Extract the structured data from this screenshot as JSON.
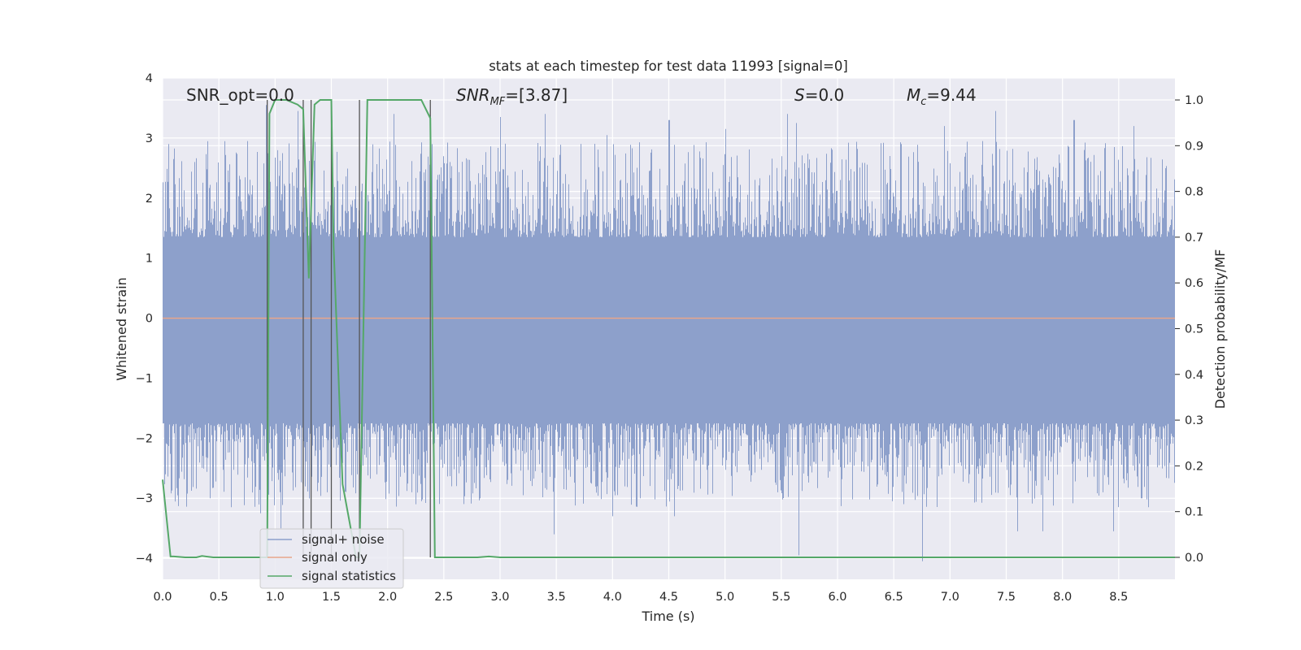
{
  "chart_data": {
    "type": "line",
    "title": "stats at each timestep for test data 11993 [signal=0]",
    "xlabel": "Time (s)",
    "ylabel": "Whitened strain",
    "y2label": "Detection probability/MF",
    "xlim": [
      0.0,
      9.0
    ],
    "ylim": [
      -4.35,
      4.0
    ],
    "y2lim": [
      -0.048,
      1.048
    ],
    "xticks": [
      "0.0",
      "0.5",
      "1.0",
      "1.5",
      "2.0",
      "2.5",
      "3.0",
      "3.5",
      "4.0",
      "4.5",
      "5.0",
      "5.5",
      "6.0",
      "6.5",
      "7.0",
      "7.5",
      "8.0",
      "8.5"
    ],
    "yticks": [
      "4",
      "3",
      "2",
      "1",
      "0",
      "−1",
      "−2",
      "−3",
      "−4"
    ],
    "y2ticks": [
      "1.0",
      "0.9",
      "0.8",
      "0.7",
      "0.6",
      "0.5",
      "0.4",
      "0.3",
      "0.2",
      "0.1",
      "0.0"
    ],
    "grid": true,
    "legend_position": "lower-left",
    "annotations": [
      {
        "base": "SNR_opt=0.0"
      },
      {
        "base": "SNR",
        "sub": "MF",
        "rest": "=[3.87]"
      },
      {
        "base": "S",
        "rest": "=0.0"
      },
      {
        "base": "M",
        "sub": "c",
        "rest": "=9.44"
      }
    ],
    "series": [
      {
        "name": "signal+ noise",
        "color": "#8da0cb",
        "axis": "left",
        "kind": "noise",
        "duration": 9.0,
        "sample_rate": 2048,
        "envelope_lower": -1.75,
        "envelope_upper": 1.35,
        "positive_peaks": [
          [
            0.05,
            2.9
          ],
          [
            0.28,
            2.6
          ],
          [
            0.75,
            2.95
          ],
          [
            0.92,
            3.55
          ],
          [
            1.2,
            3.45
          ],
          [
            1.5,
            3.3
          ],
          [
            2.05,
            3.4
          ],
          [
            2.55,
            2.6
          ],
          [
            3.0,
            3.35
          ],
          [
            3.4,
            3.4
          ],
          [
            3.95,
            3.05
          ],
          [
            4.5,
            3.3
          ],
          [
            5.0,
            3.15
          ],
          [
            5.55,
            3.4
          ],
          [
            5.63,
            3.25
          ],
          [
            6.95,
            3.2
          ],
          [
            7.4,
            3.45
          ],
          [
            8.1,
            3.3
          ],
          [
            8.63,
            3.2
          ]
        ],
        "negative_peaks": [
          [
            0.02,
            -2.6
          ],
          [
            0.42,
            -3.0
          ],
          [
            0.87,
            -3.25
          ],
          [
            1.05,
            -3.5
          ],
          [
            2.3,
            -3.05
          ],
          [
            2.82,
            -3.0
          ],
          [
            3.48,
            -3.6
          ],
          [
            4.0,
            -3.3
          ],
          [
            4.55,
            -3.3
          ],
          [
            5.65,
            -3.95
          ],
          [
            6.75,
            -4.05
          ],
          [
            7.6,
            -3.55
          ],
          [
            7.82,
            -3.55
          ],
          [
            8.45,
            -3.55
          ],
          [
            8.7,
            -3.0
          ]
        ]
      },
      {
        "name": "signal only",
        "color": "#e8a58a",
        "axis": "left",
        "x": [
          0.0,
          9.0
        ],
        "y": [
          0.0,
          0.0
        ]
      },
      {
        "name": "signal statistics",
        "color": "#55a868",
        "axis": "right",
        "x": [
          0.0,
          0.07,
          0.1,
          0.2,
          0.3,
          0.35,
          0.45,
          0.6,
          0.8,
          0.9,
          0.93,
          0.95,
          1.0,
          1.1,
          1.2,
          1.25,
          1.3,
          1.35,
          1.4,
          1.5,
          1.52,
          1.6,
          1.72,
          1.75,
          1.82,
          1.9,
          2.0,
          2.2,
          2.3,
          2.38,
          2.42,
          2.45,
          2.5,
          2.8,
          2.9,
          3.0,
          4.0,
          5.0,
          6.0,
          7.0,
          8.0,
          9.0
        ],
        "y": [
          0.17,
          0.002,
          0.002,
          0.0,
          0.0,
          0.003,
          0.0,
          0.0,
          0.0,
          0.0,
          0.0,
          0.97,
          1.0,
          1.0,
          0.99,
          0.98,
          0.61,
          0.99,
          1.0,
          1.0,
          0.68,
          0.16,
          0.0,
          0.0,
          1.0,
          1.0,
          1.0,
          1.0,
          1.0,
          0.96,
          0.0,
          0.0,
          0.0,
          0.0,
          0.002,
          0.0,
          0.0,
          0.0,
          0.0,
          0.0,
          0.0,
          0.0
        ]
      }
    ],
    "vertical_markers": [
      0.93,
      1.25,
      1.32,
      1.5,
      1.75,
      2.38
    ]
  }
}
